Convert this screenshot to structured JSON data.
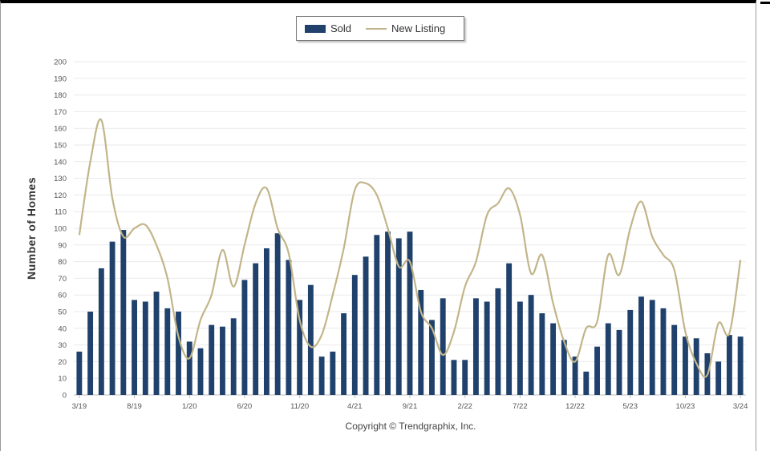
{
  "chart_data": {
    "type": "bar",
    "ylabel": "Number of Homes",
    "ylim": [
      0,
      200
    ],
    "yticks": [
      0,
      10,
      20,
      30,
      40,
      50,
      60,
      70,
      80,
      90,
      100,
      110,
      120,
      130,
      140,
      150,
      160,
      170,
      180,
      190,
      200
    ],
    "grid": true,
    "legend_position": "top-center",
    "categories": [
      "3/19",
      "4/19",
      "5/19",
      "6/19",
      "7/19",
      "8/19",
      "9/19",
      "10/19",
      "11/19",
      "12/19",
      "1/20",
      "2/20",
      "3/20",
      "4/20",
      "5/20",
      "6/20",
      "7/20",
      "8/20",
      "9/20",
      "10/20",
      "11/20",
      "12/20",
      "1/21",
      "2/21",
      "3/21",
      "4/21",
      "5/21",
      "6/21",
      "7/21",
      "8/21",
      "9/21",
      "10/21",
      "11/21",
      "12/21",
      "1/22",
      "2/22",
      "3/22",
      "4/22",
      "5/22",
      "6/22",
      "7/22",
      "8/22",
      "9/22",
      "10/22",
      "11/22",
      "12/22",
      "1/23",
      "2/23",
      "3/23",
      "4/23",
      "5/23",
      "6/23",
      "7/23",
      "8/23",
      "9/23",
      "10/23",
      "11/23",
      "12/23",
      "1/24",
      "2/24",
      "3/24"
    ],
    "x_tick_labels": [
      "3/19",
      "8/19",
      "1/20",
      "6/20",
      "11/20",
      "4/21",
      "9/21",
      "2/22",
      "7/22",
      "12/22",
      "5/23",
      "10/23",
      "3/24"
    ],
    "series": [
      {
        "name": "Sold",
        "type": "bar",
        "color": "#1f416b",
        "values": [
          26,
          50,
          76,
          92,
          99,
          57,
          56,
          62,
          52,
          50,
          32,
          28,
          42,
          41,
          46,
          69,
          79,
          88,
          97,
          81,
          57,
          66,
          23,
          26,
          49,
          72,
          83,
          96,
          98,
          94,
          98,
          63,
          45,
          58,
          21,
          21,
          58,
          56,
          64,
          79,
          56,
          60,
          49,
          43,
          33,
          23,
          14,
          29,
          43,
          39,
          51,
          59,
          57,
          52,
          42,
          35,
          34,
          25,
          20,
          36,
          35
        ]
      },
      {
        "name": "New Listing",
        "type": "line",
        "color": "#c2b58a",
        "values": [
          96,
          140,
          165,
          118,
          95,
          100,
          102,
          90,
          70,
          35,
          22,
          45,
          60,
          87,
          65,
          90,
          115,
          124,
          100,
          85,
          45,
          29,
          36,
          60,
          88,
          123,
          127,
          120,
          100,
          77,
          80,
          50,
          40,
          24,
          38,
          65,
          80,
          108,
          115,
          124,
          108,
          73,
          84,
          55,
          32,
          20,
          40,
          44,
          84,
          72,
          100,
          116,
          95,
          84,
          75,
          38,
          19,
          12,
          43,
          37,
          81
        ]
      }
    ]
  },
  "legend": {
    "sold_label": "Sold",
    "new_listing_label": "New Listing"
  },
  "footer": {
    "copyright": "Copyright © Trendgraphix, Inc."
  }
}
